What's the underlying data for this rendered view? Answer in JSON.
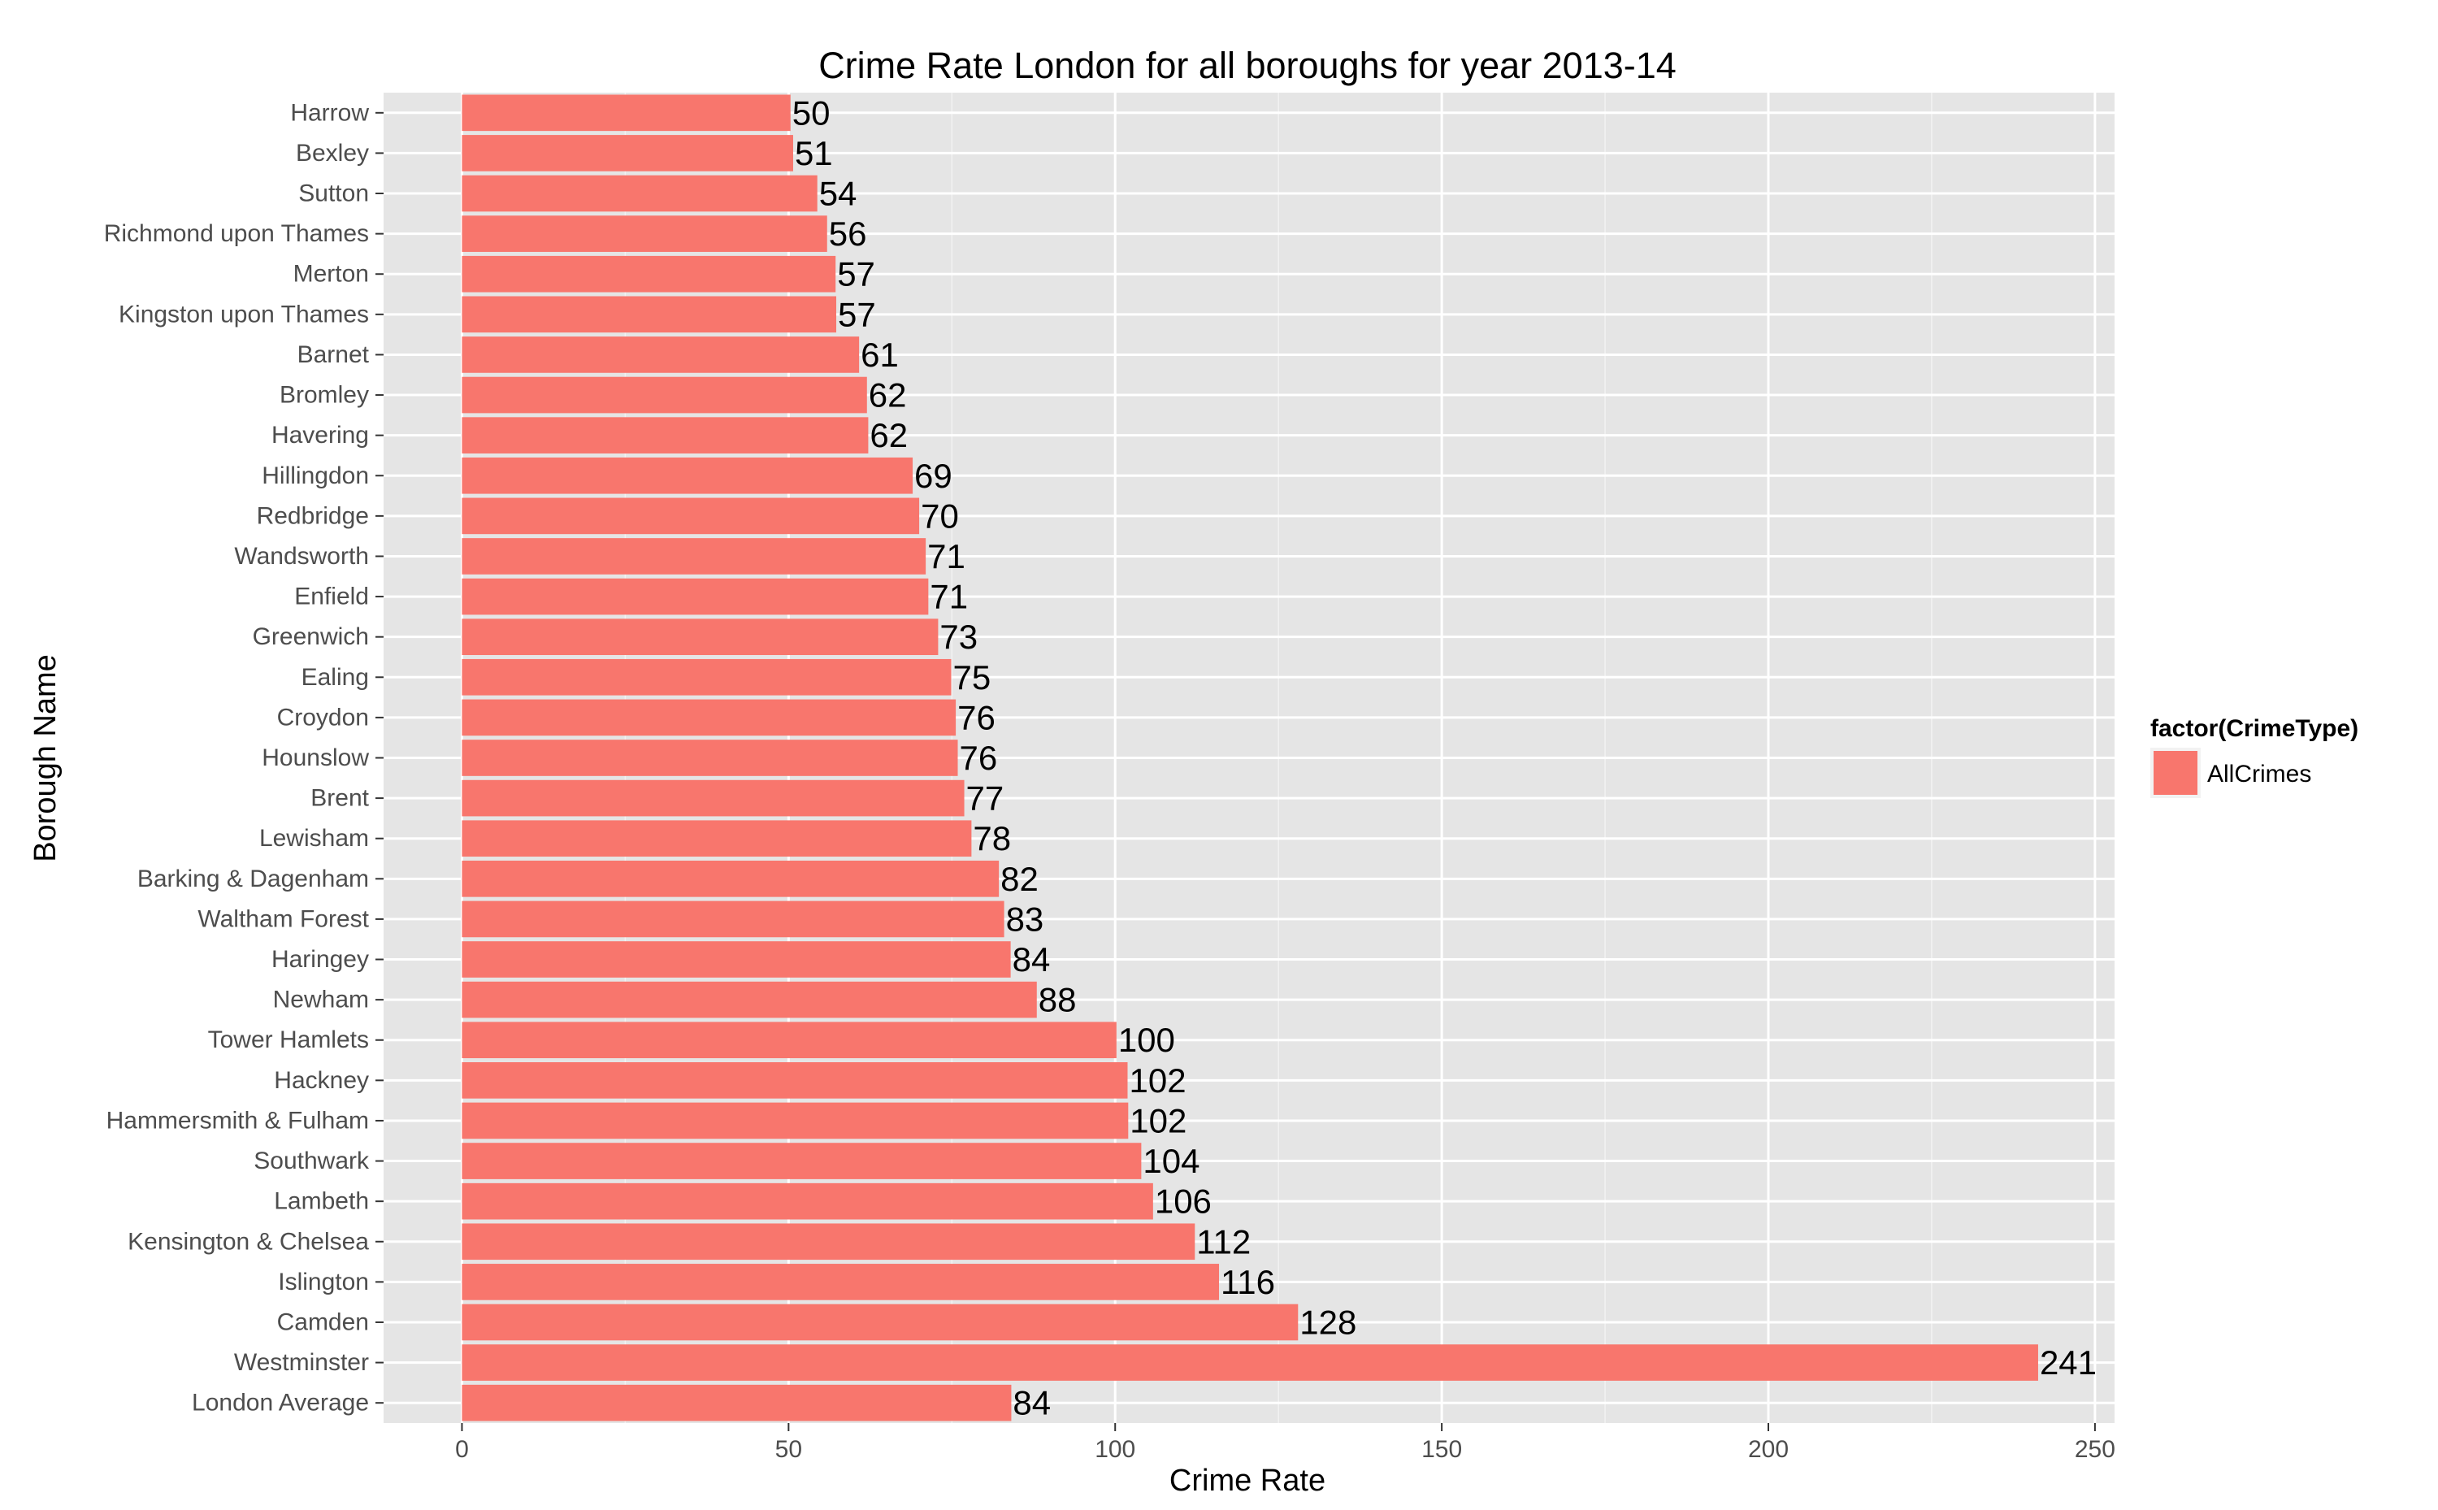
{
  "chart_data": {
    "type": "bar",
    "orientation": "horizontal",
    "title": "Crime Rate London for all boroughs for year 2013-14",
    "xlabel": "Crime Rate",
    "ylabel": "Borough Name",
    "xlim": [
      -12,
      253
    ],
    "x_ticks": [
      0,
      50,
      100,
      150,
      200,
      250
    ],
    "grid": true,
    "legend": {
      "title": "factor(CrimeType)",
      "placement": "right",
      "entries": [
        {
          "name": "AllCrimes",
          "color": "#F8766D"
        }
      ]
    },
    "bar_color": "#F8766D",
    "panel_color": "#E5E5E5",
    "categories": [
      "Harrow",
      "Bexley",
      "Sutton",
      "Richmond upon Thames",
      "Merton",
      "Kingston upon Thames",
      "Barnet",
      "Bromley",
      "Havering",
      "Hillingdon",
      "Redbridge",
      "Wandsworth",
      "Enfield",
      "Greenwich",
      "Ealing",
      "Croydon",
      "Hounslow",
      "Brent",
      "Lewisham",
      "Barking & Dagenham",
      "Waltham Forest",
      "Haringey",
      "Newham",
      "Tower Hamlets",
      "Hackney",
      "Hammersmith & Fulham",
      "Southwark",
      "Lambeth",
      "Kensington & Chelsea",
      "Islington",
      "Camden",
      "Westminster",
      "London Average"
    ],
    "values": [
      50.3,
      50.7,
      54.4,
      55.9,
      57.2,
      57.3,
      60.8,
      62.0,
      62.2,
      69.0,
      70.0,
      71.0,
      71.4,
      72.9,
      74.9,
      75.6,
      75.9,
      76.9,
      78.0,
      82.2,
      83.0,
      84.0,
      88.0,
      100.2,
      101.9,
      102.0,
      104.0,
      105.8,
      112.2,
      115.9,
      128.0,
      241.3,
      84.1
    ],
    "data_labels": [
      "50",
      "51",
      "54",
      "56",
      "57",
      "57",
      "61",
      "62",
      "62",
      "69",
      "70",
      "71",
      "71",
      "73",
      "75",
      "76",
      "76",
      "77",
      "78",
      "82",
      "83",
      "84",
      "88",
      "100",
      "102",
      "102",
      "104",
      "106",
      "112",
      "116",
      "128",
      "241",
      "84"
    ]
  }
}
